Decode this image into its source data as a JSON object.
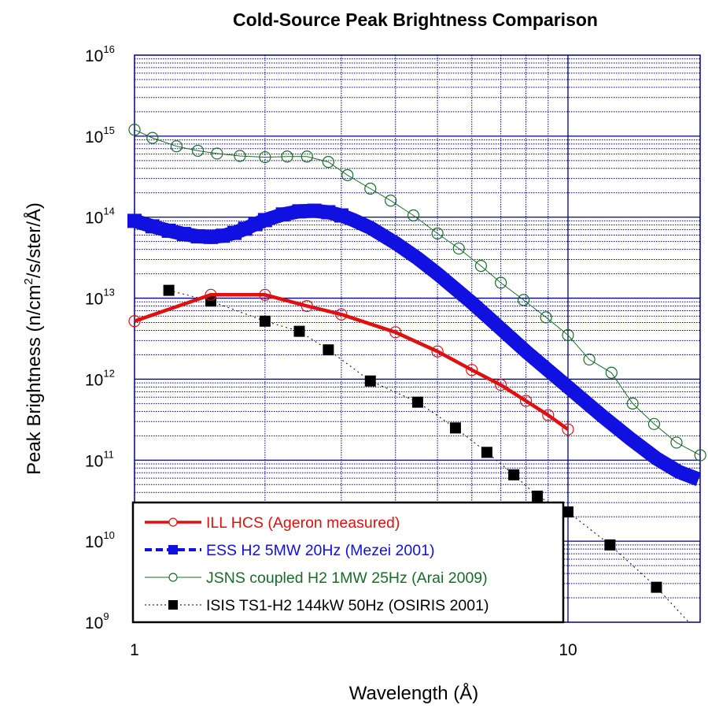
{
  "chart_data": {
    "type": "line",
    "title": "Cold-Source Peak Brightness Comparison",
    "xlabel": "Wavelength (Å)",
    "ylabel_prefix": "Peak Brightness (n/cm",
    "ylabel_sup": "2",
    "ylabel_suffix": "/s/ster/Å)",
    "xscale": "log",
    "yscale": "log",
    "xlim": [
      1,
      20.2
    ],
    "ylim": [
      1000000000.0,
      1e+16
    ],
    "grid": true,
    "legend_position": "bottom-left",
    "x_ticks": [
      {
        "value": 1,
        "label": "1"
      },
      {
        "value": 10,
        "label": "10"
      }
    ],
    "y_ticks": [
      {
        "value": 1e+16,
        "base": "10",
        "exp": "16"
      },
      {
        "value": 1000000000000000.0,
        "base": "10",
        "exp": "15"
      },
      {
        "value": 100000000000000.0,
        "base": "10",
        "exp": "14"
      },
      {
        "value": 10000000000000.0,
        "base": "10",
        "exp": "13"
      },
      {
        "value": 1000000000000.0,
        "base": "10",
        "exp": "12"
      },
      {
        "value": 100000000000.0,
        "base": "10",
        "exp": "11"
      },
      {
        "value": 10000000000.0,
        "base": "10",
        "exp": "10"
      },
      {
        "value": 1000000000.0,
        "base": "10",
        "exp": "9"
      }
    ],
    "series": [
      {
        "name": "ILL HCS (Ageron measured)",
        "color": "#e01010",
        "line": "solid-thick",
        "marker": "open-circle",
        "x": [
          1.0,
          1.5,
          2.0,
          2.5,
          3.0,
          4.0,
          5.0,
          6.0,
          7.0,
          8.0,
          9.0,
          10.0
        ],
        "y": [
          5200000000000.0,
          11000000000000.0,
          11000000000000.0,
          8000000000000.0,
          6300000000000.0,
          3800000000000.0,
          2200000000000.0,
          1300000000000.0,
          850000000000.0,
          540000000000.0,
          360000000000.0,
          240000000000.0
        ]
      },
      {
        "name": "ESS H2 5MW 20Hz (Mezei 2001)",
        "color": "#1010e0",
        "line": "dashed-thick",
        "marker": "filled-square",
        "x": [
          1.0,
          1.1,
          1.2,
          1.3,
          1.4,
          1.5,
          1.6,
          1.7,
          1.8,
          1.9,
          2.0,
          2.2,
          2.4,
          2.6,
          2.8,
          3.0,
          3.2,
          3.5,
          4.0,
          4.5,
          5.0,
          6.0,
          7.0,
          8.0,
          10.0,
          12.0,
          14.0,
          16.0,
          18.0,
          20.0
        ],
        "y": [
          90000000000000.0,
          77000000000000.0,
          68000000000000.0,
          62000000000000.0,
          58000000000000.0,
          57000000000000.0,
          59000000000000.0,
          64000000000000.0,
          72000000000000.0,
          82000000000000.0,
          92000000000000.0,
          108000000000000.0,
          118000000000000.0,
          120000000000000.0,
          115000000000000.0,
          105000000000000.0,
          92000000000000.0,
          74000000000000.0,
          48000000000000.0,
          31000000000000.0,
          20000000000000.0,
          8800000000000.0,
          4200000000000.0,
          2200000000000.0,
          800000000000.0,
          350000000000.0,
          180000000000.0,
          105000000000.0,
          72000000000.0,
          58000000000.0
        ]
      },
      {
        "name": "JSNS coupled H2 1MW 25Hz (Arai 2009)",
        "color": "#1a6b2a",
        "line": "solid-thin",
        "marker": "open-circle",
        "x": [
          1.0,
          1.1,
          1.25,
          1.4,
          1.55,
          1.75,
          2.0,
          2.25,
          2.5,
          2.8,
          3.1,
          3.5,
          3.9,
          4.4,
          5.0,
          5.6,
          6.3,
          7.0,
          7.9,
          8.9,
          10.0,
          11.2,
          12.6,
          14.1,
          15.8,
          17.8,
          20.2
        ],
        "y": [
          1200000000000000.0,
          950000000000000.0,
          750000000000000.0,
          660000000000000.0,
          610000000000000.0,
          570000000000000.0,
          550000000000000.0,
          560000000000000.0,
          560000000000000.0,
          480000000000000.0,
          330000000000000.0,
          225000000000000.0,
          160000000000000.0,
          105000000000000.0,
          63000000000000.0,
          41000000000000.0,
          25000000000000.0,
          15500000000000.0,
          9500000000000.0,
          5800000000000.0,
          3500000000000.0,
          1750000000000.0,
          1200000000000.0,
          500000000000.0,
          280000000000.0,
          165000000000.0,
          115000000000.0
        ]
      },
      {
        "name": "ISIS TS1-H2 144kW 50Hz (OSIRIS 2001)",
        "color": "#000000",
        "line": "dotted-thin",
        "marker": "filled-square",
        "x": [
          1.2,
          1.5,
          2.0,
          2.4,
          2.8,
          3.5,
          4.5,
          5.5,
          6.5,
          7.5,
          8.5,
          10.0,
          12.5,
          16.0,
          19.0
        ],
        "y": [
          12500000000000.0,
          9200000000000.0,
          5200000000000.0,
          3900000000000.0,
          2300000000000.0,
          950000000000.0,
          520000000000.0,
          250000000000.0,
          125000000000.0,
          66000000000.0,
          36000000000.0,
          23000000000.0,
          9000000000.0,
          2700000000.0,
          1000000000.0
        ],
        "marker_count": 14
      }
    ]
  }
}
